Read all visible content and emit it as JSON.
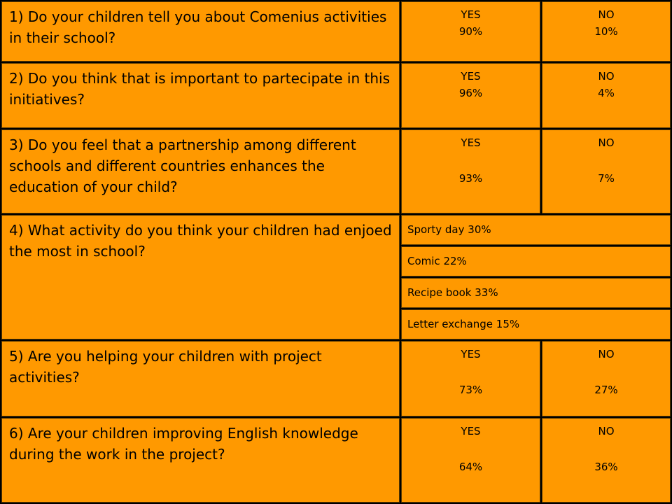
{
  "accent_color": "#FF9900",
  "rows": [
    {
      "question": "1) Do your children tell you about Comenius activities in their school?",
      "yes_label": "YES",
      "yes_value": "90%",
      "no_label": "NO",
      "no_value": "10%"
    },
    {
      "question": "2) Do you think that is important to partecipate in this initiatives?",
      "yes_label": "YES",
      "yes_value": "96%",
      "no_label": "NO",
      "no_value": "4%"
    },
    {
      "question": "3) Do you feel that a partnership among different schools and different countries enhances the education of your child?",
      "yes_label": "YES",
      "yes_value": "93%",
      "no_label": "NO",
      "no_value": "7%"
    },
    {
      "question": "4) What activity do you think your children had enjoed the most in school?",
      "options": [
        "Sporty day  30%",
        "Comic  22%",
        "Recipe book  33%",
        "Letter exchange  15%"
      ]
    },
    {
      "question": "5) Are you helping your children with project activities?",
      "yes_label": "YES",
      "yes_value": "73%",
      "no_label": "NO",
      "no_value": "27%"
    },
    {
      "question": "6) Are your children improving English knowledge during the work in the project?",
      "yes_label": "YES",
      "yes_value": "64%",
      "no_label": "NO",
      "no_value": "36%"
    }
  ]
}
